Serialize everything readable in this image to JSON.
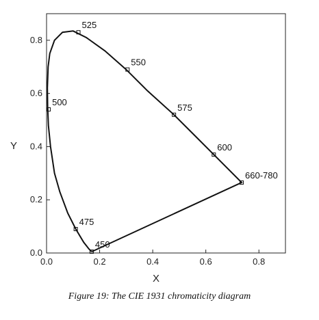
{
  "caption": "Figure 19: The CIE 1931 chromaticity diagram",
  "chart_data": {
    "type": "line",
    "xlabel": "X",
    "ylabel": "Y",
    "xlim": [
      0.0,
      0.9
    ],
    "ylim": [
      0.0,
      0.9
    ],
    "xticks": [
      0.0,
      0.2,
      0.4,
      0.6,
      0.8
    ],
    "xticklabels": [
      "0.0",
      "0.2",
      "0.4",
      "0.6",
      "0.8"
    ],
    "yticks": [
      0.0,
      0.2,
      0.4,
      0.6,
      0.8
    ],
    "yticklabels": [
      "0.0",
      "0.2",
      "0.4",
      "0.6",
      "0.8"
    ],
    "grid": false,
    "series": [
      {
        "x": [
          0.17,
          0.16,
          0.14,
          0.11,
          0.08,
          0.05,
          0.03,
          0.015,
          0.007,
          0.004,
          0.003,
          0.006,
          0.012,
          0.03,
          0.06,
          0.1,
          0.15,
          0.22,
          0.3,
          0.38,
          0.48,
          0.55,
          0.63,
          0.735,
          0.17
        ],
        "y": [
          0.005,
          0.015,
          0.04,
          0.09,
          0.15,
          0.23,
          0.3,
          0.4,
          0.48,
          0.55,
          0.62,
          0.7,
          0.75,
          0.8,
          0.83,
          0.835,
          0.81,
          0.76,
          0.69,
          0.61,
          0.52,
          0.45,
          0.37,
          0.265,
          0.005
        ]
      }
    ],
    "annotations": [
      {
        "text": "525",
        "x": 0.12,
        "y": 0.83
      },
      {
        "text": "550",
        "x": 0.305,
        "y": 0.69
      },
      {
        "text": "500",
        "x": 0.008,
        "y": 0.54
      },
      {
        "text": "575",
        "x": 0.48,
        "y": 0.52
      },
      {
        "text": "600",
        "x": 0.63,
        "y": 0.37
      },
      {
        "text": "660-780",
        "x": 0.735,
        "y": 0.265
      },
      {
        "text": "475",
        "x": 0.11,
        "y": 0.09
      },
      {
        "text": "450",
        "x": 0.17,
        "y": 0.005
      }
    ]
  }
}
